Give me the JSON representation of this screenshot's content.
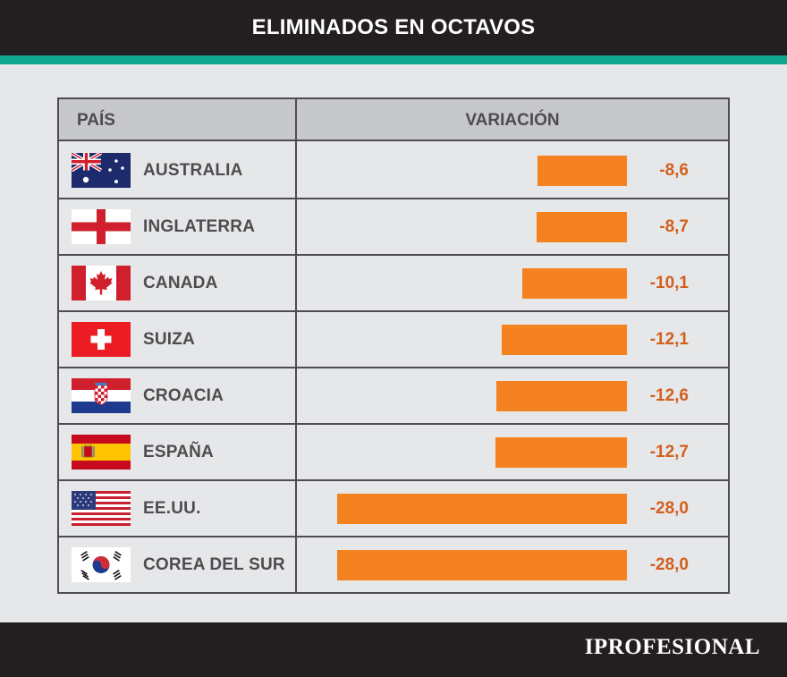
{
  "header": {
    "title": "ELIMINADOS EN OCTAVOS"
  },
  "table": {
    "col_country": "PAÍS",
    "col_variation": "VARIACIÓN"
  },
  "chart_data": {
    "type": "bar",
    "orientation": "horizontal",
    "title": "ELIMINADOS EN OCTAVOS",
    "xlabel": "VARIACIÓN",
    "ylabel": "PAÍS",
    "xlim": [
      -28,
      0
    ],
    "categories": [
      "AUSTRALIA",
      "INGLATERRA",
      "CANADA",
      "SUIZA",
      "CROACIA",
      "ESPAÑA",
      "EE.UU.",
      "COREA DEL SUR"
    ],
    "values": [
      -8.6,
      -8.7,
      -10.1,
      -12.1,
      -12.6,
      -12.7,
      -28.0,
      -28.0
    ],
    "value_labels": [
      "-8,6",
      "-8,7",
      "-10,1",
      "-12,1",
      "-12,6",
      "-12,7",
      "-28,0",
      "-28,0"
    ],
    "flags": [
      "australia-flag-icon",
      "england-flag-icon",
      "canada-flag-icon",
      "switzerland-flag-icon",
      "croatia-flag-icon",
      "spain-flag-icon",
      "usa-flag-icon",
      "south-korea-flag-icon"
    ],
    "bar_color": "#f58220",
    "value_color": "#d35f1e"
  },
  "footer": {
    "logo": "IPROFESIONAL"
  },
  "colors": {
    "header_bg": "#231f20",
    "accent": "#11a690",
    "page_bg": "#e6e7e8",
    "table_header_bg": "#c7c8ca"
  }
}
